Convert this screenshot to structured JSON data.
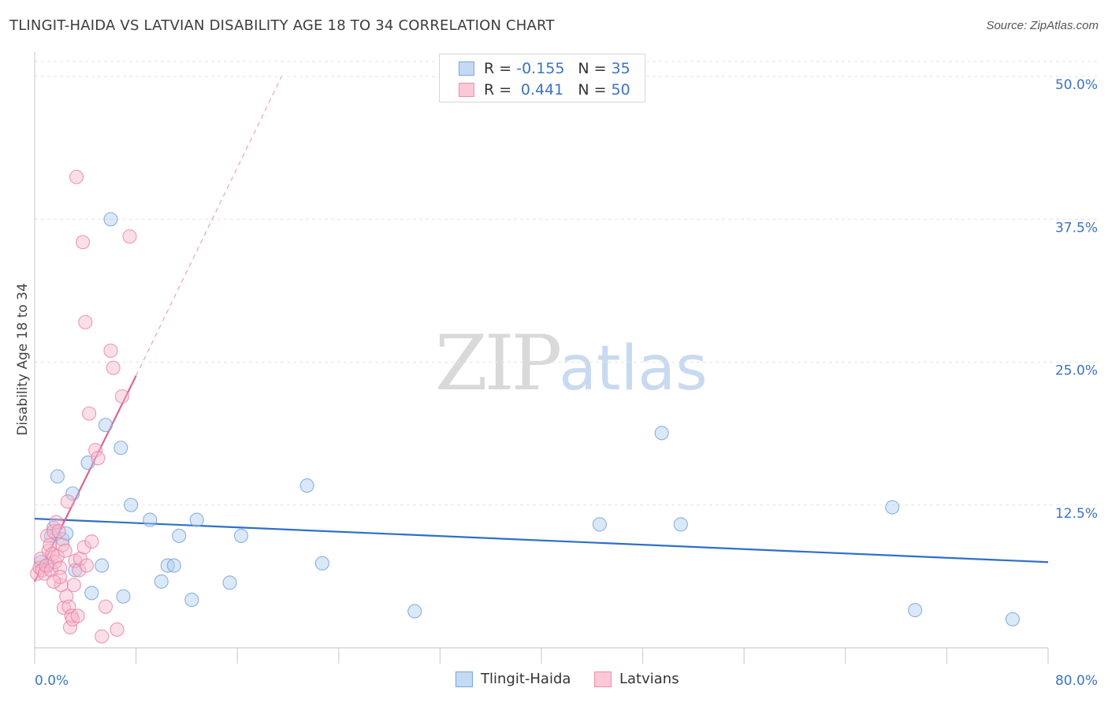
{
  "title": "TLINGIT-HAIDA VS LATVIAN DISABILITY AGE 18 TO 34 CORRELATION CHART",
  "source": "Source: ZipAtlas.com",
  "watermark": {
    "zip": "ZIP",
    "atlas": "atlas"
  },
  "legend": {
    "rows": [
      {
        "r_label": "R =",
        "r_value": "-0.155",
        "n_label": "N =",
        "n_value": "35"
      },
      {
        "r_label": "R =",
        "r_value": "0.441",
        "n_label": "N =",
        "n_value": "50"
      }
    ]
  },
  "colors": {
    "tlingit_fill": "#aecbf0",
    "tlingit_stroke": "#6f9fd8",
    "tlingit_line": "#2f6fc8",
    "latvian_fill": "#f7b9cc",
    "latvian_stroke": "#e87fa2",
    "latvian_line": "#e0628f",
    "grid": "#e3e3e3",
    "axis": "#cfcfcf"
  },
  "chart_data": {
    "type": "scatter",
    "title": "TLINGIT-HAIDA VS LATVIAN DISABILITY AGE 18 TO 34 CORRELATION CHART",
    "xlabel": "",
    "ylabel": "Disability Age 18 to 34",
    "xlim": [
      0,
      80
    ],
    "ylim": [
      0,
      50
    ],
    "x_tick_labels": [
      "0.0%",
      "80.0%"
    ],
    "y_ticks": [
      12.5,
      25.0,
      37.5,
      50.0
    ],
    "y_tick_labels": [
      "12.5%",
      "25.0%",
      "37.5%",
      "50.0%"
    ],
    "grid": "horizontal dashed",
    "legend_position": "bottom-center",
    "series": [
      {
        "name": "Tlingit-Haida",
        "color": "#aecbf0",
        "points": [
          [
            0.5,
            7.5
          ],
          [
            1.0,
            7.2
          ],
          [
            1.5,
            10.5
          ],
          [
            1.8,
            15.0
          ],
          [
            2.2,
            9.5
          ],
          [
            2.5,
            10.0
          ],
          [
            3.0,
            13.5
          ],
          [
            3.2,
            6.8
          ],
          [
            4.2,
            16.2
          ],
          [
            4.5,
            4.8
          ],
          [
            5.3,
            7.2
          ],
          [
            5.6,
            19.5
          ],
          [
            6.0,
            37.5
          ],
          [
            6.8,
            17.5
          ],
          [
            7.0,
            4.5
          ],
          [
            7.6,
            12.5
          ],
          [
            9.1,
            11.2
          ],
          [
            10.0,
            5.8
          ],
          [
            10.5,
            7.2
          ],
          [
            11.0,
            7.2
          ],
          [
            11.4,
            9.8
          ],
          [
            12.4,
            4.2
          ],
          [
            12.8,
            11.2
          ],
          [
            15.4,
            5.7
          ],
          [
            16.3,
            9.8
          ],
          [
            21.5,
            14.2
          ],
          [
            22.7,
            7.4
          ],
          [
            30.0,
            3.2
          ],
          [
            44.6,
            10.8
          ],
          [
            49.5,
            18.8
          ],
          [
            51.0,
            10.8
          ],
          [
            67.7,
            12.3
          ],
          [
            69.5,
            3.3
          ],
          [
            77.2,
            2.5
          ],
          [
            1.3,
            9.8
          ]
        ],
        "trend": {
          "x": [
            0,
            80
          ],
          "y": [
            11.3,
            7.5
          ],
          "style": "solid"
        }
      },
      {
        "name": "Latvians",
        "color": "#f7b9cc",
        "points": [
          [
            0.2,
            6.5
          ],
          [
            0.4,
            7.0
          ],
          [
            0.5,
            7.8
          ],
          [
            0.6,
            6.8
          ],
          [
            0.8,
            6.5
          ],
          [
            0.9,
            7.2
          ],
          [
            1.0,
            9.8
          ],
          [
            1.1,
            8.5
          ],
          [
            1.2,
            9.0
          ],
          [
            1.3,
            6.8
          ],
          [
            1.4,
            8.2
          ],
          [
            1.5,
            10.2
          ],
          [
            1.6,
            7.5
          ],
          [
            1.7,
            11.0
          ],
          [
            1.8,
            8.0
          ],
          [
            1.9,
            10.2
          ],
          [
            2.0,
            7.0
          ],
          [
            2.1,
            5.5
          ],
          [
            2.2,
            9.0
          ],
          [
            2.3,
            3.5
          ],
          [
            2.4,
            8.5
          ],
          [
            2.5,
            4.5
          ],
          [
            2.6,
            12.8
          ],
          [
            2.7,
            3.6
          ],
          [
            2.8,
            1.8
          ],
          [
            2.9,
            2.8
          ],
          [
            3.0,
            2.5
          ],
          [
            3.1,
            5.5
          ],
          [
            3.2,
            7.6
          ],
          [
            3.3,
            41.2
          ],
          [
            3.5,
            6.8
          ],
          [
            3.6,
            7.8
          ],
          [
            3.8,
            35.5
          ],
          [
            3.9,
            8.8
          ],
          [
            4.0,
            28.5
          ],
          [
            4.1,
            7.2
          ],
          [
            4.3,
            20.5
          ],
          [
            4.5,
            9.3
          ],
          [
            4.8,
            17.3
          ],
          [
            5.0,
            16.6
          ],
          [
            5.3,
            1.0
          ],
          [
            5.6,
            3.6
          ],
          [
            6.0,
            26.0
          ],
          [
            6.2,
            24.5
          ],
          [
            6.5,
            1.6
          ],
          [
            6.9,
            22.0
          ],
          [
            7.5,
            36.0
          ],
          [
            3.4,
            2.8
          ],
          [
            2.0,
            6.2
          ],
          [
            1.5,
            5.8
          ]
        ],
        "trend": {
          "x": [
            0,
            8
          ],
          "y": [
            5.8,
            23.8
          ],
          "style": "solid",
          "extension": {
            "x": [
              8,
              19.5
            ],
            "y": [
              23.8,
              50.0
            ],
            "style": "dashed"
          }
        }
      }
    ]
  },
  "bottom_legend": [
    {
      "label": "Tlingit-Haida"
    },
    {
      "label": "Latvians"
    }
  ]
}
